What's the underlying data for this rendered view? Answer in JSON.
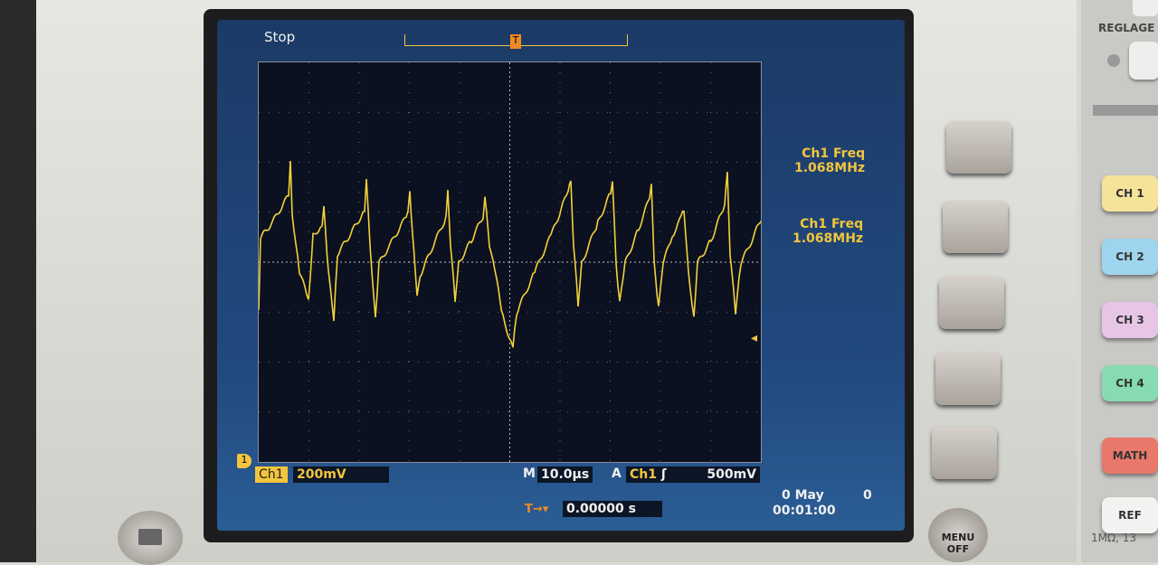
{
  "screen": {
    "status": "Stop",
    "meas1": {
      "label": "Ch1 Freq",
      "value": "1.068MHz"
    },
    "meas2": {
      "label": "Ch1 Freq",
      "value": "1.068MHz"
    },
    "channel_marker": "1",
    "channel": "Ch1",
    "volts_div": "200mV",
    "timebase_label": "M",
    "timebase": "10.0µs",
    "trigger_label": "A",
    "trigger_source": "Ch1",
    "trigger_level": "500mV",
    "trigger_pos": "0.00000 s",
    "date": "0 May",
    "date_extra": "0",
    "time": "00:01:00",
    "trace_color": "#f2d13a"
  },
  "panel": {
    "reglage": "REGLAGE",
    "menu_off": "MENU\nOFF",
    "channels": [
      {
        "label": "CH 1",
        "color": "#f5e39a"
      },
      {
        "label": "CH 2",
        "color": "#9fd4ee"
      },
      {
        "label": "CH 3",
        "color": "#e6c6e4"
      },
      {
        "label": "CH 4",
        "color": "#87dbb0"
      },
      {
        "label": "MATH",
        "color": "#e9786a"
      },
      {
        "label": "REF",
        "color": "#f2f2f0"
      }
    ],
    "input_note": "1MΩ, 13"
  }
}
